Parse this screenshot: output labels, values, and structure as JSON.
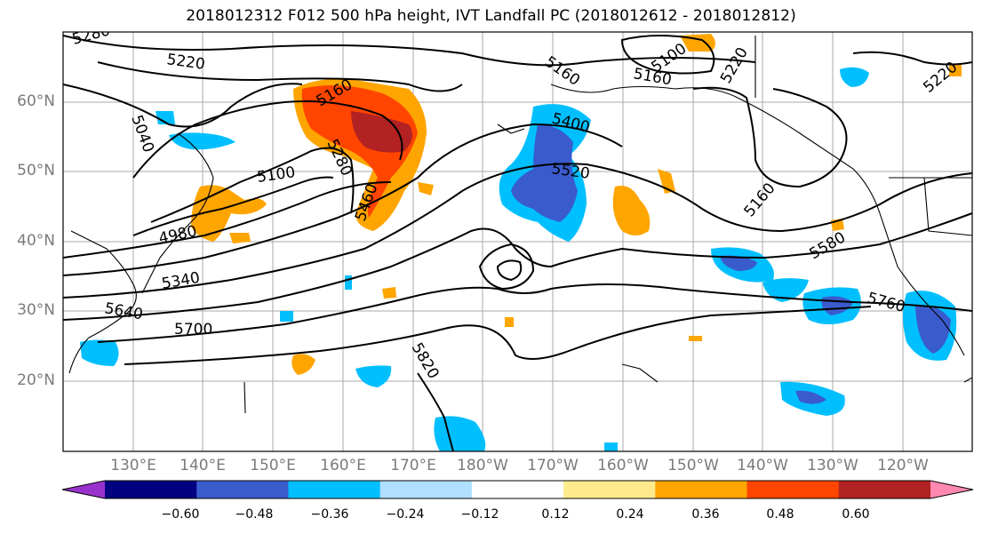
{
  "title": "2018012312 F012 500 hPa height, IVT Landfall PC (2018012612 - 2018012812)",
  "lat_labels": [
    "60°N",
    "50°N",
    "40°N",
    "30°N",
    "20°N"
  ],
  "lon_labels": [
    "130°E",
    "140°E",
    "150°E",
    "160°E",
    "170°E",
    "180°W",
    "170°W",
    "160°W",
    "150°W",
    "140°W",
    "130°W",
    "120°W"
  ],
  "contour_labels": [
    "5280",
    "5220",
    "5040",
    "5160",
    "5100",
    "4980",
    "5280",
    "5460",
    "5400",
    "5520",
    "5160",
    "5100",
    "5160",
    "5220",
    "5160",
    "5580",
    "5760",
    "5640",
    "5700",
    "5820",
    "5340",
    "5220"
  ],
  "colorbar": {
    "colors": [
      "#9932cc",
      "#000080",
      "#3a5bcc",
      "#00bfff",
      "#b0e0ff",
      "#ffffff",
      "#ffeb8c",
      "#ffa500",
      "#ff4500",
      "#b22222",
      "#ff88b0"
    ],
    "tick_labels": [
      "−0.60",
      "−0.48",
      "−0.36",
      "−0.24",
      "−0.12",
      "0.12",
      "0.24",
      "0.36",
      "0.48",
      "0.60"
    ]
  },
  "colors": {
    "land": "#000000",
    "grid": "#aaaaaa",
    "contour": "#000000"
  }
}
